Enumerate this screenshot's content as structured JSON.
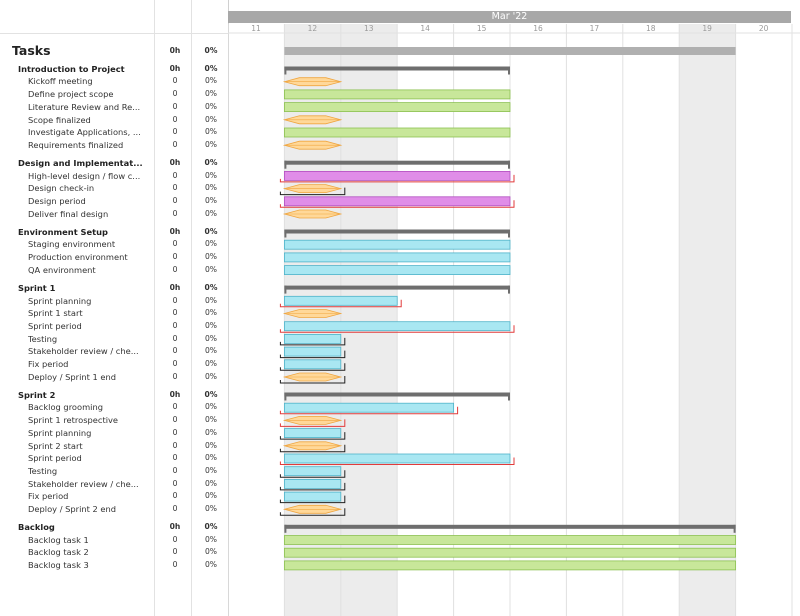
{
  "timeline": {
    "month_label": "Mar '22",
    "days": [
      "11",
      "12",
      "13",
      "14",
      "15",
      "16",
      "17",
      "18",
      "19",
      "20"
    ]
  },
  "tasks_header": {
    "title": "Tasks",
    "hours": "0h",
    "progress": "0%"
  },
  "colors": {
    "summary": "#6e6e6e",
    "project_summary": "#b0b0b0",
    "green_bar": "#c8e79a",
    "green_border": "#8cc152",
    "purple_bar": "#e08de8",
    "purple_border": "#b24fc0",
    "cyan_bar": "#a9e7f2",
    "cyan_border": "#4fb3c9",
    "milestone": "#ffd899",
    "milestone_border": "#f0a640",
    "link_red": "#e23b3b",
    "link_black": "#222222",
    "weekend_shade": "#ececec"
  },
  "rows": [
    {
      "name": "Introduction to Project",
      "hours": "0h",
      "progress": "0%",
      "type": "group",
      "bar": {
        "kind": "summary",
        "start": 12,
        "end": 16
      }
    },
    {
      "name": "Kickoff meeting",
      "hours": "0",
      "progress": "0%",
      "type": "child",
      "bar": {
        "kind": "milestone",
        "start": 12,
        "end": 13
      }
    },
    {
      "name": "Define project scope",
      "hours": "0",
      "progress": "0%",
      "type": "child",
      "bar": {
        "kind": "green",
        "start": 12,
        "end": 16
      }
    },
    {
      "name": "Literature Review and Re...",
      "hours": "0",
      "progress": "0%",
      "type": "child",
      "bar": {
        "kind": "green",
        "start": 12,
        "end": 16
      }
    },
    {
      "name": "Scope finalized",
      "hours": "0",
      "progress": "0%",
      "type": "child",
      "bar": {
        "kind": "milestone",
        "start": 12,
        "end": 13
      }
    },
    {
      "name": "Investigate Applications, ...",
      "hours": "0",
      "progress": "0%",
      "type": "child",
      "bar": {
        "kind": "green",
        "start": 12,
        "end": 16
      }
    },
    {
      "name": "Requirements finalized",
      "hours": "0",
      "progress": "0%",
      "type": "child",
      "bar": {
        "kind": "milestone",
        "start": 12,
        "end": 13
      }
    },
    {
      "type": "spacer"
    },
    {
      "name": "Design and Implementat...",
      "hours": "0h",
      "progress": "0%",
      "type": "group",
      "bar": {
        "kind": "summary",
        "start": 12,
        "end": 16
      }
    },
    {
      "name": "High-level design / flow c...",
      "hours": "0",
      "progress": "0%",
      "type": "child",
      "bar": {
        "kind": "purple",
        "start": 12,
        "end": 16,
        "link": "red"
      }
    },
    {
      "name": "Design check-in",
      "hours": "0",
      "progress": "0%",
      "type": "child",
      "bar": {
        "kind": "milestone",
        "start": 12,
        "end": 13,
        "link": "black"
      }
    },
    {
      "name": "Design period",
      "hours": "0",
      "progress": "0%",
      "type": "child",
      "bar": {
        "kind": "purple",
        "start": 12,
        "end": 16,
        "link": "red"
      }
    },
    {
      "name": "Deliver final design",
      "hours": "0",
      "progress": "0%",
      "type": "child",
      "bar": {
        "kind": "milestone",
        "start": 12,
        "end": 13
      }
    },
    {
      "type": "spacer"
    },
    {
      "name": "Environment Setup",
      "hours": "0h",
      "progress": "0%",
      "type": "group",
      "bar": {
        "kind": "summary",
        "start": 12,
        "end": 16
      }
    },
    {
      "name": "Staging environment",
      "hours": "0",
      "progress": "0%",
      "type": "child",
      "bar": {
        "kind": "cyan",
        "start": 12,
        "end": 16
      }
    },
    {
      "name": "Production environment",
      "hours": "0",
      "progress": "0%",
      "type": "child",
      "bar": {
        "kind": "cyan",
        "start": 12,
        "end": 16
      }
    },
    {
      "name": "QA environment",
      "hours": "0",
      "progress": "0%",
      "type": "child",
      "bar": {
        "kind": "cyan",
        "start": 12,
        "end": 16
      }
    },
    {
      "type": "spacer"
    },
    {
      "name": "Sprint 1",
      "hours": "0h",
      "progress": "0%",
      "type": "group",
      "bar": {
        "kind": "summary",
        "start": 12,
        "end": 16
      }
    },
    {
      "name": "Sprint planning",
      "hours": "0",
      "progress": "0%",
      "type": "child",
      "bar": {
        "kind": "cyan",
        "start": 12,
        "end": 14,
        "link": "red"
      }
    },
    {
      "name": "Sprint 1 start",
      "hours": "0",
      "progress": "0%",
      "type": "child",
      "bar": {
        "kind": "milestone",
        "start": 12,
        "end": 13
      }
    },
    {
      "name": "Sprint period",
      "hours": "0",
      "progress": "0%",
      "type": "child",
      "bar": {
        "kind": "cyan",
        "start": 12,
        "end": 16,
        "link": "red"
      }
    },
    {
      "name": "Testing",
      "hours": "0",
      "progress": "0%",
      "type": "child",
      "bar": {
        "kind": "cyan",
        "start": 12,
        "end": 13,
        "link": "black"
      }
    },
    {
      "name": "Stakeholder review / che...",
      "hours": "0",
      "progress": "0%",
      "type": "child",
      "bar": {
        "kind": "cyan",
        "start": 12,
        "end": 13,
        "link": "black"
      }
    },
    {
      "name": "Fix period",
      "hours": "0",
      "progress": "0%",
      "type": "child",
      "bar": {
        "kind": "cyan",
        "start": 12,
        "end": 13,
        "link": "black"
      }
    },
    {
      "name": "Deploy / Sprint 1 end",
      "hours": "0",
      "progress": "0%",
      "type": "child",
      "bar": {
        "kind": "milestone",
        "start": 12,
        "end": 13,
        "link": "black"
      }
    },
    {
      "type": "spacer"
    },
    {
      "name": "Sprint 2",
      "hours": "0h",
      "progress": "0%",
      "type": "group",
      "bar": {
        "kind": "summary",
        "start": 12,
        "end": 16
      }
    },
    {
      "name": "Backlog grooming",
      "hours": "0",
      "progress": "0%",
      "type": "child",
      "bar": {
        "kind": "cyan",
        "start": 12,
        "end": 15,
        "link": "red"
      }
    },
    {
      "name": "Sprint 1 retrospective",
      "hours": "0",
      "progress": "0%",
      "type": "child",
      "bar": {
        "kind": "milestone",
        "start": 12,
        "end": 13,
        "link": "red"
      }
    },
    {
      "name": "Sprint planning",
      "hours": "0",
      "progress": "0%",
      "type": "child",
      "bar": {
        "kind": "cyan",
        "start": 12,
        "end": 13,
        "link": "black"
      }
    },
    {
      "name": "Sprint 2 start",
      "hours": "0",
      "progress": "0%",
      "type": "child",
      "bar": {
        "kind": "milestone",
        "start": 12,
        "end": 13,
        "link": "black"
      }
    },
    {
      "name": "Sprint period",
      "hours": "0",
      "progress": "0%",
      "type": "child",
      "bar": {
        "kind": "cyan",
        "start": 12,
        "end": 16,
        "link": "red"
      }
    },
    {
      "name": "Testing",
      "hours": "0",
      "progress": "0%",
      "type": "child",
      "bar": {
        "kind": "cyan",
        "start": 12,
        "end": 13,
        "link": "black"
      }
    },
    {
      "name": "Stakeholder review / che...",
      "hours": "0",
      "progress": "0%",
      "type": "child",
      "bar": {
        "kind": "cyan",
        "start": 12,
        "end": 13,
        "link": "black"
      }
    },
    {
      "name": "Fix period",
      "hours": "0",
      "progress": "0%",
      "type": "child",
      "bar": {
        "kind": "cyan",
        "start": 12,
        "end": 13,
        "link": "black"
      }
    },
    {
      "name": "Deploy / Sprint 2 end",
      "hours": "0",
      "progress": "0%",
      "type": "child",
      "bar": {
        "kind": "milestone",
        "start": 12,
        "end": 13,
        "link": "black"
      }
    },
    {
      "type": "spacer"
    },
    {
      "name": "Backlog",
      "hours": "0h",
      "progress": "0%",
      "type": "group",
      "bar": {
        "kind": "summary",
        "start": 12,
        "end": 20
      }
    },
    {
      "name": "Backlog task 1",
      "hours": "0",
      "progress": "0%",
      "type": "child",
      "bar": {
        "kind": "green",
        "start": 12,
        "end": 20
      }
    },
    {
      "name": "Backlog task 2",
      "hours": "0",
      "progress": "0%",
      "type": "child",
      "bar": {
        "kind": "green",
        "start": 12,
        "end": 20
      }
    },
    {
      "name": "Backlog task 3",
      "hours": "0",
      "progress": "0%",
      "type": "child",
      "bar": {
        "kind": "green",
        "start": 12,
        "end": 20
      }
    }
  ]
}
